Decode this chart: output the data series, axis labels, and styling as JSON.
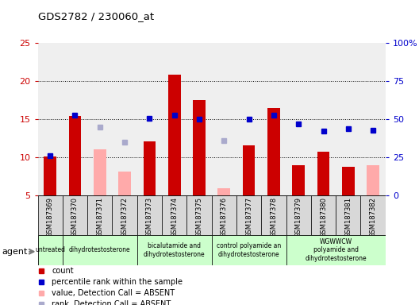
{
  "title": "GDS2782 / 230060_at",
  "samples": [
    "GSM187369",
    "GSM187370",
    "GSM187371",
    "GSM187372",
    "GSM187373",
    "GSM187374",
    "GSM187375",
    "GSM187376",
    "GSM187377",
    "GSM187378",
    "GSM187379",
    "GSM187380",
    "GSM187381",
    "GSM187382"
  ],
  "count_values": [
    10.1,
    15.4,
    null,
    null,
    12.1,
    20.8,
    17.5,
    null,
    11.5,
    16.4,
    8.9,
    10.7,
    8.7,
    null
  ],
  "rank_values": [
    10.2,
    15.5,
    null,
    null,
    15.1,
    15.5,
    15.0,
    null,
    15.0,
    15.5,
    14.4,
    13.4,
    13.7,
    13.5
  ],
  "absent_count_values": [
    null,
    null,
    11.0,
    8.1,
    null,
    null,
    null,
    5.9,
    null,
    null,
    null,
    null,
    null,
    8.9
  ],
  "absent_rank_values": [
    null,
    null,
    13.9,
    12.0,
    null,
    null,
    null,
    12.2,
    null,
    null,
    null,
    null,
    null,
    null
  ],
  "count_color": "#cc0000",
  "rank_color": "#0000cc",
  "absent_count_color": "#ffaaaa",
  "absent_rank_color": "#aaaacc",
  "ylim_left": [
    5,
    25
  ],
  "ylim_right": [
    0,
    100
  ],
  "yticks_left": [
    5,
    10,
    15,
    20,
    25
  ],
  "yticks_right": [
    0,
    25,
    50,
    75,
    100
  ],
  "yticklabels_right": [
    "0",
    "25",
    "50",
    "75",
    "100%"
  ],
  "grid_lines": [
    10,
    15,
    20
  ],
  "groups": [
    {
      "label": "untreated",
      "start": 0,
      "end": 0
    },
    {
      "label": "dihydrotestosterone",
      "start": 1,
      "end": 3
    },
    {
      "label": "bicalutamide and\ndihydrotestosterone",
      "start": 4,
      "end": 6
    },
    {
      "label": "control polyamide an\ndihydrotestosterone",
      "start": 7,
      "end": 9
    },
    {
      "label": "WGWWCW\npolyamide and\ndihydrotestosterone",
      "start": 10,
      "end": 13
    }
  ],
  "group_color": "#ccffcc",
  "col_bg_color": "#d8d8d8",
  "legend_items": [
    {
      "label": "count",
      "color": "#cc0000"
    },
    {
      "label": "percentile rank within the sample",
      "color": "#0000cc"
    },
    {
      "label": "value, Detection Call = ABSENT",
      "color": "#ffaaaa"
    },
    {
      "label": "rank, Detection Call = ABSENT",
      "color": "#aaaacc"
    }
  ],
  "bar_width": 0.5
}
